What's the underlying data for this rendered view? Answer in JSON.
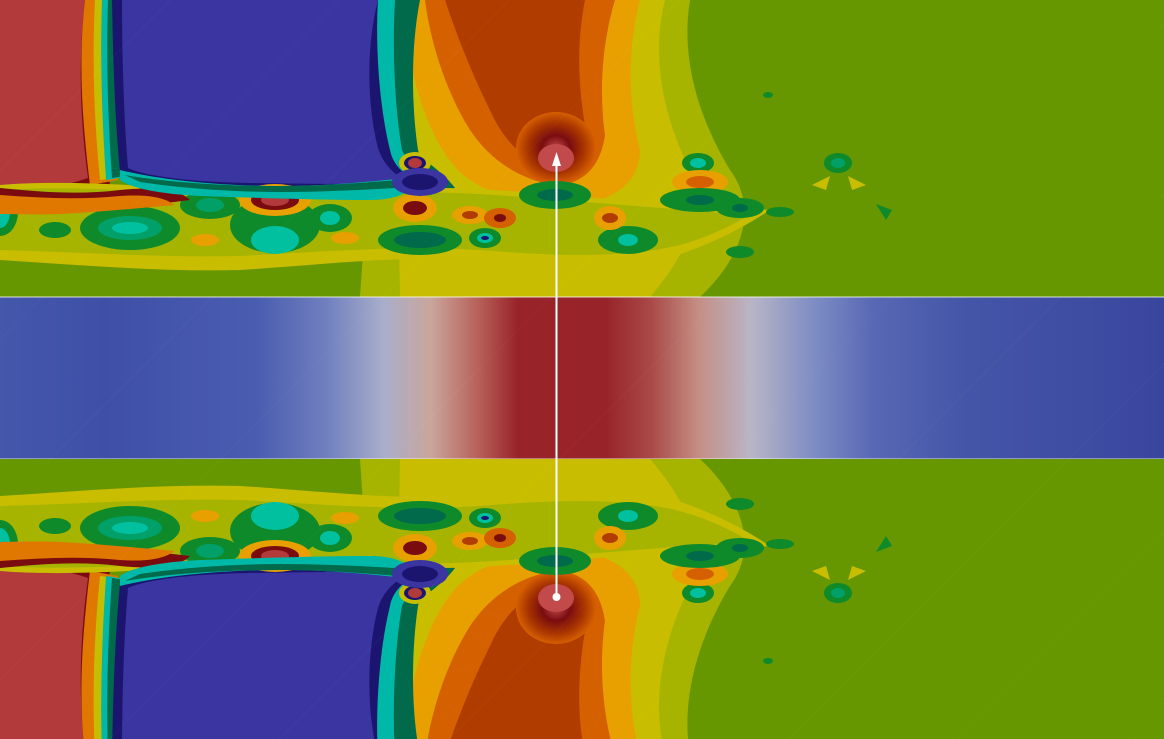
{
  "viewer": {
    "colors": {
      "background_field": "#669600",
      "low": "#3a35a0",
      "high": "#b23a3a",
      "band_cool": "#3f4fa8",
      "band_warm": "#982329",
      "probe_line": "#ffffff"
    },
    "panels": [
      "upper-field",
      "middle-band",
      "lower-field"
    ],
    "colormaps": {
      "field": "rainbow",
      "band": "cool-to-warm"
    },
    "probe": {
      "orientation": "vertical",
      "start_marker": "arrow-up-icon",
      "end_marker": "dot-icon"
    }
  }
}
